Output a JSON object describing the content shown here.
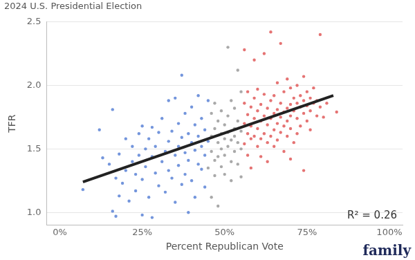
{
  "chart_data": {
    "type": "scatter",
    "subtitle": "2024 U.S. Presidential Election",
    "x_label": "Percent Republican Vote",
    "y_label": "TFR",
    "annotations": [
      "R² = 0.26"
    ],
    "source": "family",
    "xlim": [
      -4,
      104
    ],
    "xticks": [
      {
        "value": 0,
        "label": "0%"
      },
      {
        "value": 25,
        "label": "25%"
      },
      {
        "value": 50,
        "label": "50%"
      },
      {
        "value": 75,
        "label": "75%"
      },
      {
        "value": 100,
        "label": "100%"
      }
    ],
    "ylim": [
      0.9,
      2.5
    ],
    "yticks": [
      {
        "value": 1,
        "label": "1.0"
      },
      1.5,
      {
        "value": 2,
        "label": "2.0"
      },
      2.5
    ],
    "grid": "y",
    "series": [
      {
        "color": "#5b82d6",
        "marker": "circle",
        "x": [
          7,
          12,
          13,
          15,
          16,
          16,
          17,
          17,
          18,
          18,
          19,
          20,
          20,
          21,
          22,
          22,
          23,
          23,
          24,
          24,
          25,
          25,
          25,
          26,
          26,
          27,
          27,
          28,
          28,
          28,
          29,
          29,
          30,
          30,
          31,
          31,
          32,
          32,
          33,
          33,
          33,
          34,
          34,
          35,
          35,
          35,
          36,
          36,
          36,
          37,
          37,
          37,
          38,
          38,
          38,
          39,
          39,
          39,
          40,
          40,
          40,
          41,
          41,
          41,
          42,
          42,
          42,
          43,
          43,
          43,
          44,
          44,
          44,
          45,
          45
        ],
        "values": [
          1.18,
          1.65,
          1.43,
          1.38,
          1.81,
          1.01,
          1.27,
          0.97,
          1.46,
          1.13,
          1.23,
          1.58,
          1.33,
          1.09,
          1.52,
          1.4,
          1.3,
          1.17,
          1.62,
          1.45,
          0.98,
          1.68,
          1.26,
          1.5,
          1.36,
          1.12,
          1.58,
          1.67,
          1.44,
          0.96,
          1.31,
          1.52,
          1.21,
          1.63,
          1.4,
          1.74,
          1.48,
          1.16,
          1.56,
          1.33,
          1.88,
          1.27,
          1.64,
          1.45,
          1.9,
          1.08,
          1.52,
          1.7,
          1.37,
          1.59,
          2.08,
          1.22,
          1.47,
          1.78,
          1.3,
          1.62,
          1.41,
          1.0,
          1.55,
          1.83,
          1.25,
          1.69,
          1.49,
          1.12,
          1.6,
          1.38,
          1.92,
          1.52,
          1.74,
          1.34,
          1.65,
          1.45,
          1.2,
          1.88,
          1.56
        ]
      },
      {
        "color": "#9a9a9a",
        "marker": "circle",
        "x": [
          45,
          46,
          46,
          46,
          46,
          47,
          47,
          47,
          47,
          48,
          48,
          48,
          48,
          49,
          49,
          49,
          49,
          50,
          50,
          50,
          50,
          51,
          51,
          51,
          51,
          52,
          52,
          52,
          52,
          53,
          53,
          53,
          53,
          54,
          54,
          54,
          54,
          55,
          55,
          55,
          55
        ],
        "values": [
          1.35,
          1.6,
          1.48,
          1.78,
          1.12,
          1.66,
          1.41,
          1.86,
          1.29,
          1.55,
          1.72,
          1.44,
          1.05,
          1.62,
          1.5,
          1.36,
          1.8,
          1.58,
          1.69,
          1.45,
          1.3,
          2.3,
          1.63,
          1.52,
          1.76,
          1.57,
          1.4,
          1.88,
          1.25,
          1.66,
          1.48,
          1.82,
          1.6,
          1.55,
          1.72,
          1.38,
          2.12,
          1.64,
          1.5,
          1.95,
          1.28
        ]
      },
      {
        "color": "#e05a5a",
        "marker": "circle",
        "x": [
          56,
          56,
          56,
          56,
          57,
          57,
          57,
          57,
          58,
          58,
          58,
          58,
          59,
          59,
          59,
          59,
          60,
          60,
          60,
          60,
          61,
          61,
          61,
          61,
          62,
          62,
          62,
          62,
          63,
          63,
          63,
          63,
          64,
          64,
          64,
          64,
          65,
          65,
          65,
          65,
          66,
          66,
          66,
          66,
          67,
          67,
          67,
          67,
          68,
          68,
          68,
          68,
          69,
          69,
          69,
          69,
          70,
          70,
          70,
          70,
          71,
          71,
          71,
          72,
          72,
          72,
          72,
          73,
          73,
          73,
          74,
          74,
          74,
          75,
          75,
          75,
          76,
          76,
          76,
          77,
          77,
          78,
          78,
          79,
          79,
          80,
          81,
          84,
          74,
          70
        ],
        "values": [
          1.7,
          1.54,
          2.28,
          1.86,
          1.62,
          1.77,
          1.45,
          1.95,
          1.68,
          1.58,
          1.83,
          1.35,
          1.74,
          1.6,
          1.9,
          2.2,
          1.66,
          1.52,
          1.8,
          1.97,
          1.72,
          1.58,
          1.85,
          1.44,
          1.76,
          1.62,
          1.93,
          2.25,
          1.69,
          1.55,
          1.82,
          1.4,
          1.74,
          1.88,
          1.6,
          2.42,
          1.78,
          1.65,
          1.92,
          1.52,
          1.81,
          1.7,
          2.02,
          1.57,
          1.75,
          1.86,
          1.63,
          2.33,
          1.79,
          1.68,
          1.95,
          1.48,
          1.82,
          1.72,
          2.05,
          1.6,
          1.85,
          1.76,
          1.66,
          1.98,
          1.8,
          1.9,
          1.55,
          1.86,
          1.74,
          2.0,
          1.62,
          1.83,
          1.92,
          1.68,
          1.88,
          1.78,
          2.07,
          1.84,
          1.72,
          1.95,
          1.9,
          1.8,
          1.65,
          1.86,
          1.98,
          1.88,
          1.76,
          1.83,
          2.4,
          1.75,
          1.86,
          1.79,
          1.33,
          1.42
        ]
      },
      {
        "type": "line",
        "color": "#222222",
        "line_style": "solid",
        "x": [
          7,
          83
        ],
        "values": [
          1.24,
          1.92
        ]
      }
    ]
  }
}
